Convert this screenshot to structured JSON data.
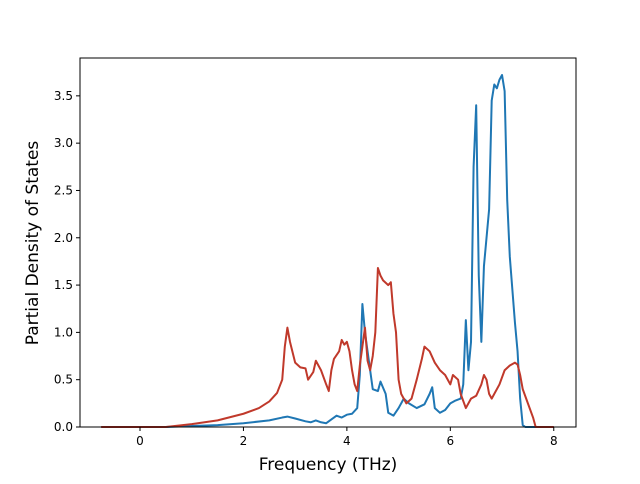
{
  "chart_data": {
    "type": "line",
    "title": "",
    "xlabel": "Frequency (THz)",
    "ylabel": "Partial Density of States",
    "xlim": [
      -1.16,
      8.43
    ],
    "ylim": [
      0.0,
      3.9
    ],
    "xticks": [
      0,
      2,
      4,
      6,
      8
    ],
    "xtick_labels": [
      "0",
      "2",
      "4",
      "6",
      "8"
    ],
    "yticks": [
      0.0,
      0.5,
      1.0,
      1.5,
      2.0,
      2.5,
      3.0,
      3.5
    ],
    "ytick_labels": [
      "0.0",
      "0.5",
      "1.0",
      "1.5",
      "2.0",
      "2.5",
      "3.0",
      "3.5"
    ],
    "grid": false,
    "legend": "none",
    "series": [
      {
        "color": "#1f77b4",
        "points": [
          [
            -0.75,
            0.0
          ],
          [
            0.5,
            0.0
          ],
          [
            1.0,
            0.01
          ],
          [
            1.5,
            0.02
          ],
          [
            2.0,
            0.04
          ],
          [
            2.5,
            0.07
          ],
          [
            2.75,
            0.1
          ],
          [
            2.85,
            0.11
          ],
          [
            3.0,
            0.09
          ],
          [
            3.2,
            0.06
          ],
          [
            3.3,
            0.05
          ],
          [
            3.4,
            0.07
          ],
          [
            3.5,
            0.05
          ],
          [
            3.6,
            0.04
          ],
          [
            3.7,
            0.08
          ],
          [
            3.8,
            0.12
          ],
          [
            3.9,
            0.1
          ],
          [
            4.0,
            0.13
          ],
          [
            4.1,
            0.14
          ],
          [
            4.2,
            0.2
          ],
          [
            4.25,
            0.55
          ],
          [
            4.3,
            1.3
          ],
          [
            4.35,
            1.0
          ],
          [
            4.45,
            0.6
          ],
          [
            4.5,
            0.4
          ],
          [
            4.6,
            0.38
          ],
          [
            4.65,
            0.48
          ],
          [
            4.75,
            0.35
          ],
          [
            4.8,
            0.15
          ],
          [
            4.9,
            0.12
          ],
          [
            5.0,
            0.2
          ],
          [
            5.1,
            0.3
          ],
          [
            5.2,
            0.25
          ],
          [
            5.35,
            0.2
          ],
          [
            5.5,
            0.24
          ],
          [
            5.6,
            0.35
          ],
          [
            5.65,
            0.42
          ],
          [
            5.7,
            0.2
          ],
          [
            5.8,
            0.15
          ],
          [
            5.9,
            0.18
          ],
          [
            6.0,
            0.25
          ],
          [
            6.1,
            0.28
          ],
          [
            6.2,
            0.3
          ],
          [
            6.25,
            0.45
          ],
          [
            6.3,
            1.13
          ],
          [
            6.35,
            0.6
          ],
          [
            6.4,
            0.9
          ],
          [
            6.45,
            2.75
          ],
          [
            6.5,
            3.4
          ],
          [
            6.55,
            1.6
          ],
          [
            6.6,
            0.9
          ],
          [
            6.65,
            1.7
          ],
          [
            6.75,
            2.3
          ],
          [
            6.8,
            3.45
          ],
          [
            6.85,
            3.62
          ],
          [
            6.9,
            3.58
          ],
          [
            6.95,
            3.67
          ],
          [
            7.0,
            3.72
          ],
          [
            7.05,
            3.55
          ],
          [
            7.1,
            2.4
          ],
          [
            7.15,
            1.8
          ],
          [
            7.25,
            1.1
          ],
          [
            7.3,
            0.8
          ],
          [
            7.35,
            0.3
          ],
          [
            7.4,
            0.02
          ],
          [
            7.45,
            0.0
          ],
          [
            8.0,
            0.0
          ]
        ]
      },
      {
        "color": "#c0392b",
        "points": [
          [
            -0.75,
            0.0
          ],
          [
            0.5,
            0.0
          ],
          [
            1.0,
            0.03
          ],
          [
            1.5,
            0.07
          ],
          [
            2.0,
            0.14
          ],
          [
            2.3,
            0.2
          ],
          [
            2.5,
            0.27
          ],
          [
            2.65,
            0.36
          ],
          [
            2.75,
            0.5
          ],
          [
            2.8,
            0.85
          ],
          [
            2.85,
            1.05
          ],
          [
            2.9,
            0.9
          ],
          [
            3.0,
            0.68
          ],
          [
            3.1,
            0.63
          ],
          [
            3.2,
            0.62
          ],
          [
            3.25,
            0.5
          ],
          [
            3.35,
            0.58
          ],
          [
            3.4,
            0.7
          ],
          [
            3.5,
            0.6
          ],
          [
            3.6,
            0.45
          ],
          [
            3.65,
            0.38
          ],
          [
            3.7,
            0.6
          ],
          [
            3.75,
            0.72
          ],
          [
            3.85,
            0.8
          ],
          [
            3.9,
            0.92
          ],
          [
            3.95,
            0.87
          ],
          [
            4.0,
            0.9
          ],
          [
            4.05,
            0.8
          ],
          [
            4.1,
            0.6
          ],
          [
            4.15,
            0.45
          ],
          [
            4.2,
            0.38
          ],
          [
            4.25,
            0.65
          ],
          [
            4.3,
            0.85
          ],
          [
            4.35,
            1.05
          ],
          [
            4.4,
            0.7
          ],
          [
            4.45,
            0.6
          ],
          [
            4.5,
            0.75
          ],
          [
            4.55,
            1.0
          ],
          [
            4.6,
            1.68
          ],
          [
            4.65,
            1.6
          ],
          [
            4.7,
            1.55
          ],
          [
            4.8,
            1.5
          ],
          [
            4.85,
            1.53
          ],
          [
            4.9,
            1.2
          ],
          [
            4.95,
            1.0
          ],
          [
            5.0,
            0.5
          ],
          [
            5.05,
            0.35
          ],
          [
            5.15,
            0.25
          ],
          [
            5.25,
            0.3
          ],
          [
            5.35,
            0.5
          ],
          [
            5.45,
            0.72
          ],
          [
            5.5,
            0.85
          ],
          [
            5.6,
            0.8
          ],
          [
            5.7,
            0.68
          ],
          [
            5.8,
            0.6
          ],
          [
            5.9,
            0.55
          ],
          [
            6.0,
            0.45
          ],
          [
            6.05,
            0.55
          ],
          [
            6.15,
            0.5
          ],
          [
            6.2,
            0.35
          ],
          [
            6.3,
            0.2
          ],
          [
            6.4,
            0.3
          ],
          [
            6.5,
            0.33
          ],
          [
            6.6,
            0.45
          ],
          [
            6.65,
            0.55
          ],
          [
            6.7,
            0.5
          ],
          [
            6.75,
            0.35
          ],
          [
            6.8,
            0.3
          ],
          [
            6.85,
            0.35
          ],
          [
            6.95,
            0.45
          ],
          [
            7.05,
            0.6
          ],
          [
            7.15,
            0.65
          ],
          [
            7.25,
            0.68
          ],
          [
            7.3,
            0.66
          ],
          [
            7.35,
            0.55
          ],
          [
            7.4,
            0.4
          ],
          [
            7.5,
            0.25
          ],
          [
            7.6,
            0.1
          ],
          [
            7.65,
            0.0
          ],
          [
            8.0,
            0.0
          ]
        ]
      }
    ]
  }
}
